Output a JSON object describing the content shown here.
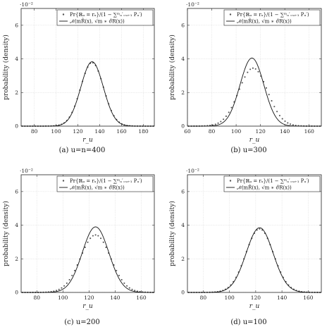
{
  "figure": {
    "note": ""
  },
  "chart_data": [
    {
      "type": "line",
      "caption": "(a) u=n=400",
      "xlabel": "r_u",
      "ylabel": "probability (density)",
      "y_exponent": "·10⁻²",
      "xlim": [
        68,
        190
      ],
      "ylim": [
        0,
        7
      ],
      "xticks": [
        80,
        100,
        120,
        140,
        160,
        180
      ],
      "yticks": [
        0,
        2,
        4,
        6
      ],
      "grid": true,
      "legend_position": "top-right",
      "legend": [
        "Pr{ℝᵤ = rᵤ}/(1 − ∑ᵐᵤ′₌ᵤ₊₁ Pᵤ′)",
        "𝒩(mR̂(x), √m ∗ σ̂R(x))"
      ],
      "series": [
        {
          "style": "markers",
          "kind": "gaussian",
          "mu": 133,
          "sigma": 10.5,
          "peak": 3.78,
          "step": 2.4
        },
        {
          "style": "line",
          "kind": "gaussian",
          "mu": 133,
          "sigma": 10.3,
          "peak": 3.83
        }
      ]
    },
    {
      "type": "line",
      "caption": "(b) u=300",
      "xlabel": "r_u",
      "ylabel": "probability (density)",
      "y_exponent": "·10⁻²",
      "xlim": [
        60,
        170
      ],
      "ylim": [
        0,
        7
      ],
      "xticks": [
        60,
        80,
        100,
        120,
        140,
        160
      ],
      "yticks": [
        0,
        2,
        4,
        6
      ],
      "grid": true,
      "legend_position": "top-right",
      "legend": [
        "Pr{ℝᵤ = rᵤ}/(1 − ∑ᵐᵤ′₌ᵤ₊₁ Pᵤ′)",
        "𝒩(mR̂(x), √m ∗ σ̂R(x))"
      ],
      "series": [
        {
          "style": "markers",
          "kind": "gaussian",
          "mu": 114,
          "sigma": 11.8,
          "peak": 3.45,
          "step": 2.2
        },
        {
          "style": "line",
          "kind": "gaussian",
          "mu": 113,
          "sigma": 9.8,
          "peak": 4.05
        }
      ]
    },
    {
      "type": "line",
      "caption": "(c) u=200",
      "xlabel": "r_u",
      "ylabel": "probability (density)",
      "y_exponent": "·10⁻²",
      "xlim": [
        68,
        170
      ],
      "ylim": [
        0,
        7
      ],
      "xticks": [
        80,
        100,
        120,
        140,
        160
      ],
      "yticks": [
        0,
        2,
        4,
        6
      ],
      "grid": true,
      "legend_position": "top-right",
      "legend": [
        "Pr{ℝᵤ = rᵤ}/(1 − ∑ᵐᵤ′₌ᵤ₊₁ Pᵤ′)",
        "𝒩(mR̂(x), √m ∗ σ̂R(x))"
      ],
      "series": [
        {
          "style": "markers",
          "kind": "gaussian",
          "mu": 125,
          "sigma": 11.5,
          "peak": 3.42,
          "step": 2.0
        },
        {
          "style": "line",
          "kind": "gaussian",
          "mu": 125,
          "sigma": 10.2,
          "peak": 3.9
        }
      ]
    },
    {
      "type": "line",
      "caption": "(d) u=100",
      "xlabel": "r_u",
      "ylabel": "probability (density)",
      "y_exponent": "·10⁻²",
      "xlim": [
        68,
        170
      ],
      "ylim": [
        0,
        7
      ],
      "xticks": [
        80,
        100,
        120,
        140,
        160
      ],
      "yticks": [
        0,
        2,
        4,
        6
      ],
      "grid": true,
      "legend_position": "top-right",
      "legend": [
        "Pr{ℝᵤ = rᵤ}/(1 − ∑ᵐᵤ′₌ᵤ₊₁ Pᵤ′)",
        "𝒩(mR̂(x), √m ∗ σ̂R(x))"
      ],
      "series": [
        {
          "style": "markers",
          "kind": "gaussian",
          "mu": 123,
          "sigma": 10.6,
          "peak": 3.78,
          "step": 2.0
        },
        {
          "style": "line",
          "kind": "gaussian",
          "mu": 123,
          "sigma": 10.3,
          "peak": 3.85
        }
      ]
    }
  ]
}
